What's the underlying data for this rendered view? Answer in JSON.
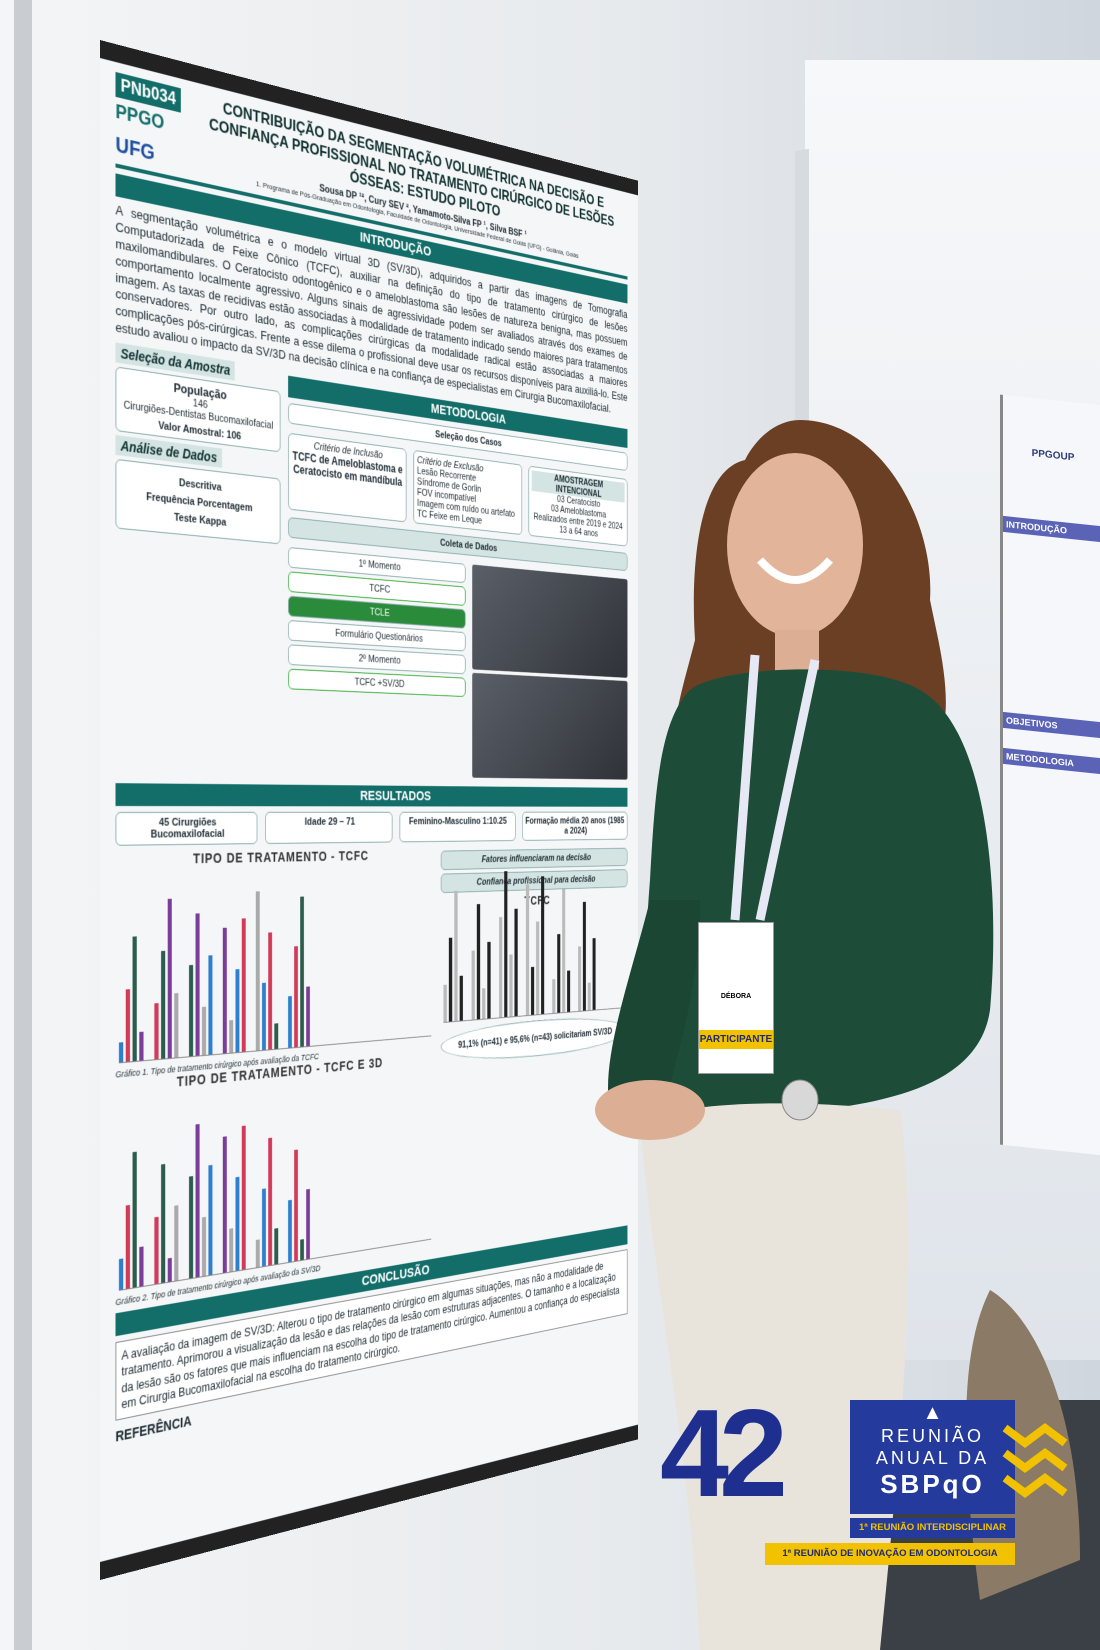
{
  "poster": {
    "code": "PNb034",
    "program": "PPGO",
    "university": "UFG",
    "title": "CONTRIBUIÇÃO DA SEGMENTAÇÃO VOLUMÉTRICA NA DECISÃO E CONFIANÇA PROFISSIONAL NO TRATAMENTO CIRÚRGICO DE LESÕES ÓSSEAS: ESTUDO PILOTO",
    "authors": "Sousa DP ¹², Cury SEV ², Yamamoto-Silva FP ¹, Silva BSF ¹",
    "affiliation": "1. Programa de Pós-Graduação em Odontologia, Faculdade de Odontologia, Universidade Federal de Goiás (UFG) - Goiânia, Goiás",
    "intro_heading": "INTRODUÇÃO",
    "intro_text": "A segmentação volumétrica e o modelo virtual 3D (SV/3D), adquiridos a partir das imagens de Tomografia Computadorizada de Feixe Cônico (TCFC), auxiliar na definição do tipo de tratamento cirúrgico de lesões maxilomandibulares. O Ceratocisto odontogênico e o ameloblastoma são lesões de natureza benigna, mas possuem comportamento localmente agressivo. Alguns sinais de agressividade podem ser avaliados através dos exames de imagem. As taxas de recidivas estão associadas à modalidade de tratamento indicado sendo maiores para tratamentos conservadores. Por outro lado, as complicações cirúrgicas da modalidade radical estão associadas a maiores complicações pós-cirúrgicas. Frente a esse dilema o profissional deve usar os recursos disponíveis para auxiliá-lo. Este estudo avaliou o impacto da SV/3D na decisão clínica e na confiança de especialistas em Cirurgia Bucomaxilofacial.",
    "sample_heading": "Seleção da Amostra",
    "population": "População",
    "population_count": "146",
    "population_desc": "Cirurgiões-Dentistas Bucomaxilofacial",
    "sample_value": "Valor Amostral: 106",
    "method_heading": "METODOLOGIA",
    "cases_heading": "Seleção dos Casos",
    "inclusion": "Critério de Inclusão",
    "inclusion_text": "TCFC de Ameloblastoma e Ceratocisto em mandíbula",
    "exclusion": "Critério de Exclusão",
    "exclusion_items": [
      "Lesão Recorrente",
      "Síndrome de Gorlin",
      "FOV incompatível",
      "Imagem com ruído ou artefato",
      "TC Feixe em Leque"
    ],
    "sampling": "AMOSTRAGEM INTENCIONAL",
    "sampling_items": [
      "03 Ceratocisto",
      "03 Ameloblastoma",
      "Realizados entre 2019 e 2024",
      "13 a 64 anos"
    ],
    "analysis_heading": "Análise de Dados",
    "analysis_items": [
      "Descritiva",
      "Frequência Porcentagem",
      "Teste Kappa"
    ],
    "collection_heading": "Coleta de Dados",
    "moment1": "1º Momento",
    "moment2": "2º Momento",
    "tcfc": "TCFC",
    "tcfc_sv": "TCFC +SV/3D",
    "form": "Formulário Questionários",
    "tcle": "TCLE",
    "results_heading": "RESULTADOS",
    "results_boxes": [
      "45 Cirurgiões Bucomaxilofacial",
      "Idade 29 – 71",
      "Feminino-Masculino 1:10.25",
      "Formação média 20 anos (1985 a 2024)"
    ],
    "chart1_title": "TIPO DE TRATAMENTO - TCFC",
    "chart1_caption": "Gráfico 1. Tipo de tratamento cirúrgico após avaliação da TCFC",
    "chart2_title": "TIPO DE TRATAMENTO - TCFC E 3D",
    "chart2_caption": "Gráfico 2. Tipo de tratamento cirúrgico após avaliação da SV/3D",
    "factors": "Fatores influenciaram na decisão",
    "confidence": "Confiança profissional para decisão",
    "confidence_tcfc": "TCFC",
    "solicit": "91,1% (n=41) e 95,6% (n=43) solicitariam SV/3D",
    "conclusion_heading": "CONCLUSÃO",
    "conclusion_text": "A avaliação da imagem de SV/3D: Alterou o tipo de tratamento cirúrgico em algumas situações, mas não a modalidade de tratamento. Aprimorou a visualização da lesão e das relações da lesão com estruturas adjacentes. O tamanho e a localização da lesão são os fatores que mais influenciam na escolha do tipo de tratamento cirúrgico. Aumentou a confiança do especialista em Cirurgia Bucomaxilofacial na escolha do tratamento cirúrgico.",
    "reference": "REFERÊNCIA"
  },
  "neighbor_poster": {
    "logo": "PPGOUP",
    "headings": [
      "INTRODUÇÃO",
      "OBJETIVOS",
      "METODOLOGIA"
    ]
  },
  "badge": {
    "name": "DÉBORA",
    "role": "PARTICIPANTE"
  },
  "logo": {
    "number": "42",
    "line1": "REUNIÃO",
    "line2": "ANUAL DA",
    "line3": "SBPqO",
    "sub1": "1ª REUNIÃO INTERDISCIPLINAR",
    "sub2": "1ª REUNIÃO DE INOVAÇÃO EM ODONTOLOGIA"
  }
}
